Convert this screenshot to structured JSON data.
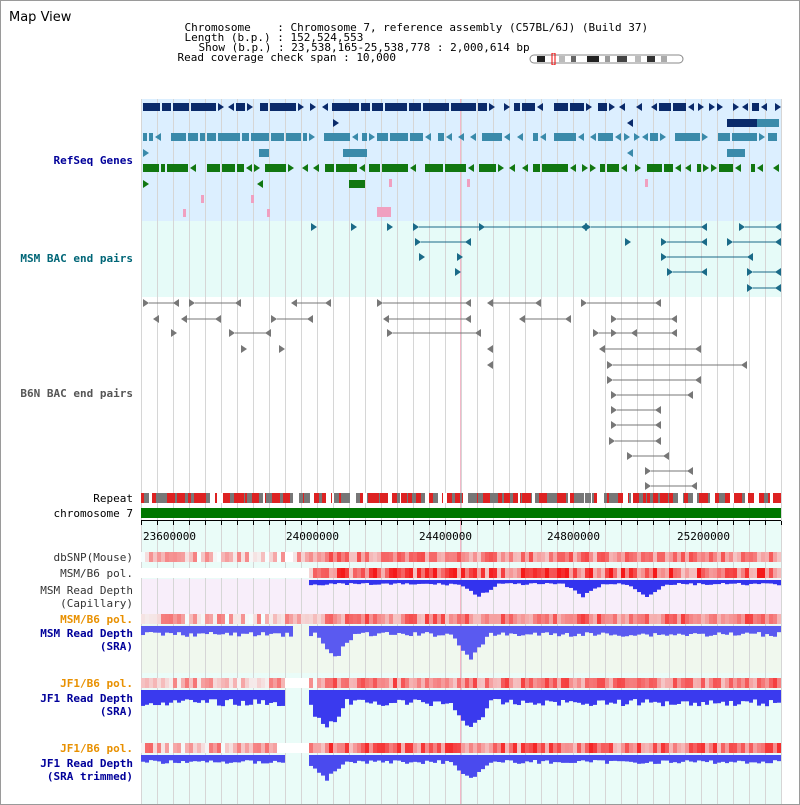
{
  "title": "Map View",
  "header": {
    "chromosome_key": "Chromosome    :",
    "chromosome_val": "Chromosome 7, reference assembly (C57BL/6J) (Build 37)",
    "length_key": "Length (b.p.) :",
    "length_val": "152,524,553",
    "show_key": "Show (b.p.) :",
    "show_val": "23,538,165-25,538,778 : 2,000,614 bp",
    "coverage_key": "Read coverage check span :",
    "coverage_val": "10,000"
  },
  "tracks": {
    "refseq": "RefSeq Genes",
    "msm_bac": "MSM BAC end pairs",
    "b6n_bac": "B6N BAC end pairs",
    "repeat": "Repeat",
    "chromosome": "chromosome 7",
    "dbsnp": "dbSNP(Mouse)",
    "msm_b6_pol_1": "MSM/B6 pol.",
    "msm_read_cap_1": "MSM Read Depth",
    "msm_read_cap_2": "(Capillary)",
    "msm_b6_pol_2": "MSM/B6 pol.",
    "msm_read_sra_1": "MSM Read Depth",
    "msm_read_sra_2": "(SRA)",
    "jf1_b6_pol_1": "JF1/B6 pol.",
    "jf1_read_sra_1": "JF1 Read Depth",
    "jf1_read_sra_2": "(SRA)",
    "jf1_b6_pol_2": "JF1/B6 pol.",
    "jf1_trim_1": "JF1 Read Depth",
    "jf1_trim_2": "(SRA trimmed)"
  },
  "axis_ticks": [
    "23600000",
    "24000000",
    "24400000",
    "24800000",
    "25200000"
  ],
  "colors": {
    "refseq_bg": "#dcefff",
    "msm_bg": "#e6fbf8",
    "gene_navy": "#0a2a6a",
    "gene_blue": "#3a8aaa",
    "gene_green": "#117711",
    "gene_pink": "#f0a0c0",
    "bac_teal": "#1a6a88",
    "bac_gray": "#777777",
    "chrom_green": "#007700",
    "depth_blue": "#3333ee",
    "label_blue": "#00009a",
    "label_orange": "#e89000",
    "label_teal": "#006677"
  }
}
